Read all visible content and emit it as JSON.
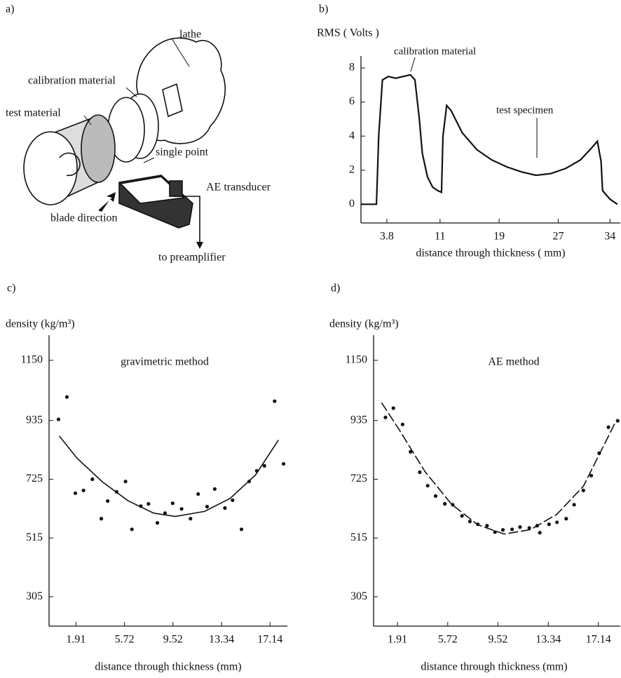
{
  "diagram": {
    "panel_label": "a)",
    "labels": [
      "lathe",
      "calibration material",
      "test material",
      "single point",
      "AE transducer",
      "blade direction",
      "to preamplifier"
    ]
  },
  "chart_data": [
    {
      "type": "line",
      "panel_label": "b)",
      "y_label": "RMS ( Volts )",
      "x_label": "distance through thickness ( mm)",
      "annotations": [
        "calibration material",
        "test specimen"
      ],
      "xlim": [
        0.3,
        35.4
      ],
      "ylim": [
        -1.1,
        8.7
      ],
      "xticks": [
        3.8,
        11,
        19,
        27,
        34
      ],
      "yticks": [
        0,
        2,
        4,
        6,
        8
      ],
      "series": [
        {
          "style": "line",
          "color": "#111",
          "x": [
            0.3,
            2.4,
            2.7,
            3.2,
            4,
            5,
            6,
            7,
            7.6,
            8.2,
            8.6,
            9.3,
            10,
            10.7,
            11.2,
            11.4,
            11.9,
            12.5,
            14,
            16,
            18,
            20,
            22,
            24,
            26,
            28,
            30,
            31.5,
            32.3,
            32.8,
            33,
            34,
            35
          ],
          "values": [
            0,
            0,
            4,
            7.3,
            7.5,
            7.4,
            7.5,
            7.6,
            7.3,
            5,
            3,
            1.6,
            1.0,
            0.8,
            0.7,
            4,
            5.8,
            5.5,
            4.2,
            3.2,
            2.6,
            2.2,
            1.9,
            1.7,
            1.8,
            2.1,
            2.6,
            3.3,
            3.7,
            2.5,
            0.8,
            0.3,
            0
          ]
        }
      ]
    },
    {
      "type": "scatter",
      "panel_label": "c)",
      "y_label": "density (kg/m³)",
      "title": "gravimetric method",
      "x_label": "distance through thickness (mm)",
      "xlim": [
        -0.2,
        18.5
      ],
      "ylim": [
        200,
        1240
      ],
      "xticks": [
        1.91,
        5.72,
        9.52,
        13.34,
        17.14
      ],
      "yticks": [
        305,
        515,
        725,
        935,
        1150
      ],
      "series": [
        {
          "style": "points",
          "color": "#111",
          "x": [
            0.54,
            1.2,
            1.86,
            2.5,
            3.2,
            3.9,
            4.4,
            5.1,
            5.8,
            6.3,
            7.0,
            7.6,
            8.3,
            8.9,
            9.5,
            10.2,
            10.9,
            11.5,
            12.2,
            12.8,
            13.6,
            14.2,
            14.9,
            15.5,
            16.1,
            16.7,
            17.5,
            18.2
          ],
          "values": [
            939,
            1019,
            675,
            685,
            725,
            584,
            647,
            680,
            717,
            546,
            629,
            637,
            569,
            604,
            639,
            619,
            584,
            672,
            627,
            690,
            622,
            650,
            546,
            717,
            755,
            773,
            1004,
            780
          ]
        },
        {
          "style": "line",
          "color": "#111",
          "x": [
            0.6,
            2,
            4,
            6,
            8,
            9.7,
            12,
            14,
            16,
            17.8
          ],
          "values": [
            880,
            800,
            715,
            648,
            604,
            592,
            610,
            656,
            740,
            865
          ]
        }
      ]
    },
    {
      "type": "scatter",
      "panel_label": "d)",
      "y_label": "density (kg/m³)",
      "title": "AE method",
      "x_label": "distance through thickness (mm)",
      "xlim": [
        0.1,
        18.8
      ],
      "ylim": [
        200,
        1240
      ],
      "xticks": [
        1.91,
        5.72,
        9.52,
        13.34,
        17.14
      ],
      "yticks": [
        305,
        515,
        725,
        935,
        1150
      ],
      "series": [
        {
          "style": "points",
          "color": "#111",
          "x": [
            1.0,
            1.6,
            2.3,
            2.9,
            3.6,
            4.2,
            4.8,
            5.5,
            6.1,
            6.8,
            7.4,
            8.0,
            8.7,
            9.3,
            9.9,
            10.6,
            11.2,
            11.9,
            12.5,
            12.7,
            13.4,
            14.0,
            14.7,
            15.3,
            16.0,
            16.6,
            17.2,
            17.9,
            18.6
          ],
          "values": [
            946,
            979,
            921,
            823,
            750,
            702,
            665,
            637,
            634,
            594,
            574,
            564,
            559,
            536,
            544,
            546,
            554,
            551,
            559,
            534,
            564,
            571,
            584,
            634,
            685,
            738,
            818,
            911,
            934
          ]
        },
        {
          "style": "line",
          "dash": true,
          "color": "#111",
          "x": [
            0.7,
            2,
            4,
            6,
            8,
            10,
            12,
            14,
            16,
            18.4
          ],
          "values": [
            999,
            905,
            752,
            636,
            562,
            529,
            545,
            600,
            700,
            926
          ]
        }
      ]
    }
  ]
}
